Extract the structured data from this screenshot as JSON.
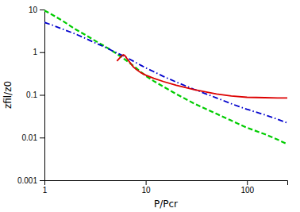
{
  "chart_data": {
    "type": "line",
    "xlabel": "P/Pcr",
    "ylabel": "zfil/z0",
    "log": true,
    "grid": false,
    "xlim": [
      1,
      250
    ],
    "ylim": [
      0.001,
      10
    ],
    "xticks": [
      1,
      10,
      100
    ],
    "yticks": [
      0.001,
      0.01,
      0.1,
      1,
      10
    ],
    "series": [
      {
        "color": "#00cc00",
        "line_style": "dashed",
        "x": [
          1,
          1.2,
          1.5,
          2,
          2.5,
          3,
          4,
          5,
          6,
          7,
          8,
          9,
          10,
          12,
          15,
          20,
          30,
          50,
          70,
          100,
          150,
          200,
          250
        ],
        "values": [
          9.5,
          7.5,
          5.5,
          3.5,
          2.6,
          2.0,
          1.35,
          0.97,
          0.72,
          0.55,
          0.43,
          0.34,
          0.28,
          0.21,
          0.155,
          0.105,
          0.063,
          0.036,
          0.025,
          0.017,
          0.012,
          0.009,
          0.007
        ]
      },
      {
        "color": "#0000cc",
        "line_style": "dashdot",
        "x": [
          1,
          1.2,
          1.5,
          2,
          2.5,
          3,
          4,
          5,
          6,
          7,
          8,
          9,
          10,
          12,
          15,
          20,
          30,
          50,
          70,
          100,
          150,
          200,
          250
        ],
        "values": [
          5.0,
          4.3,
          3.5,
          2.7,
          2.15,
          1.75,
          1.3,
          1.0,
          0.82,
          0.68,
          0.57,
          0.49,
          0.43,
          0.35,
          0.27,
          0.2,
          0.135,
          0.085,
          0.062,
          0.046,
          0.034,
          0.027,
          0.022
        ]
      },
      {
        "color": "#dd0000",
        "line_style": "solid",
        "x": [
          5.2,
          5.5,
          5.8,
          6.0,
          6.2,
          6.5,
          7.0,
          7.5,
          8.0,
          9.0,
          10,
          12,
          15,
          20,
          30,
          50,
          70,
          100,
          150,
          200,
          250
        ],
        "values": [
          0.62,
          0.72,
          0.82,
          0.87,
          0.84,
          0.72,
          0.57,
          0.46,
          0.4,
          0.33,
          0.29,
          0.245,
          0.205,
          0.168,
          0.133,
          0.105,
          0.094,
          0.088,
          0.086,
          0.085,
          0.085
        ]
      }
    ]
  }
}
